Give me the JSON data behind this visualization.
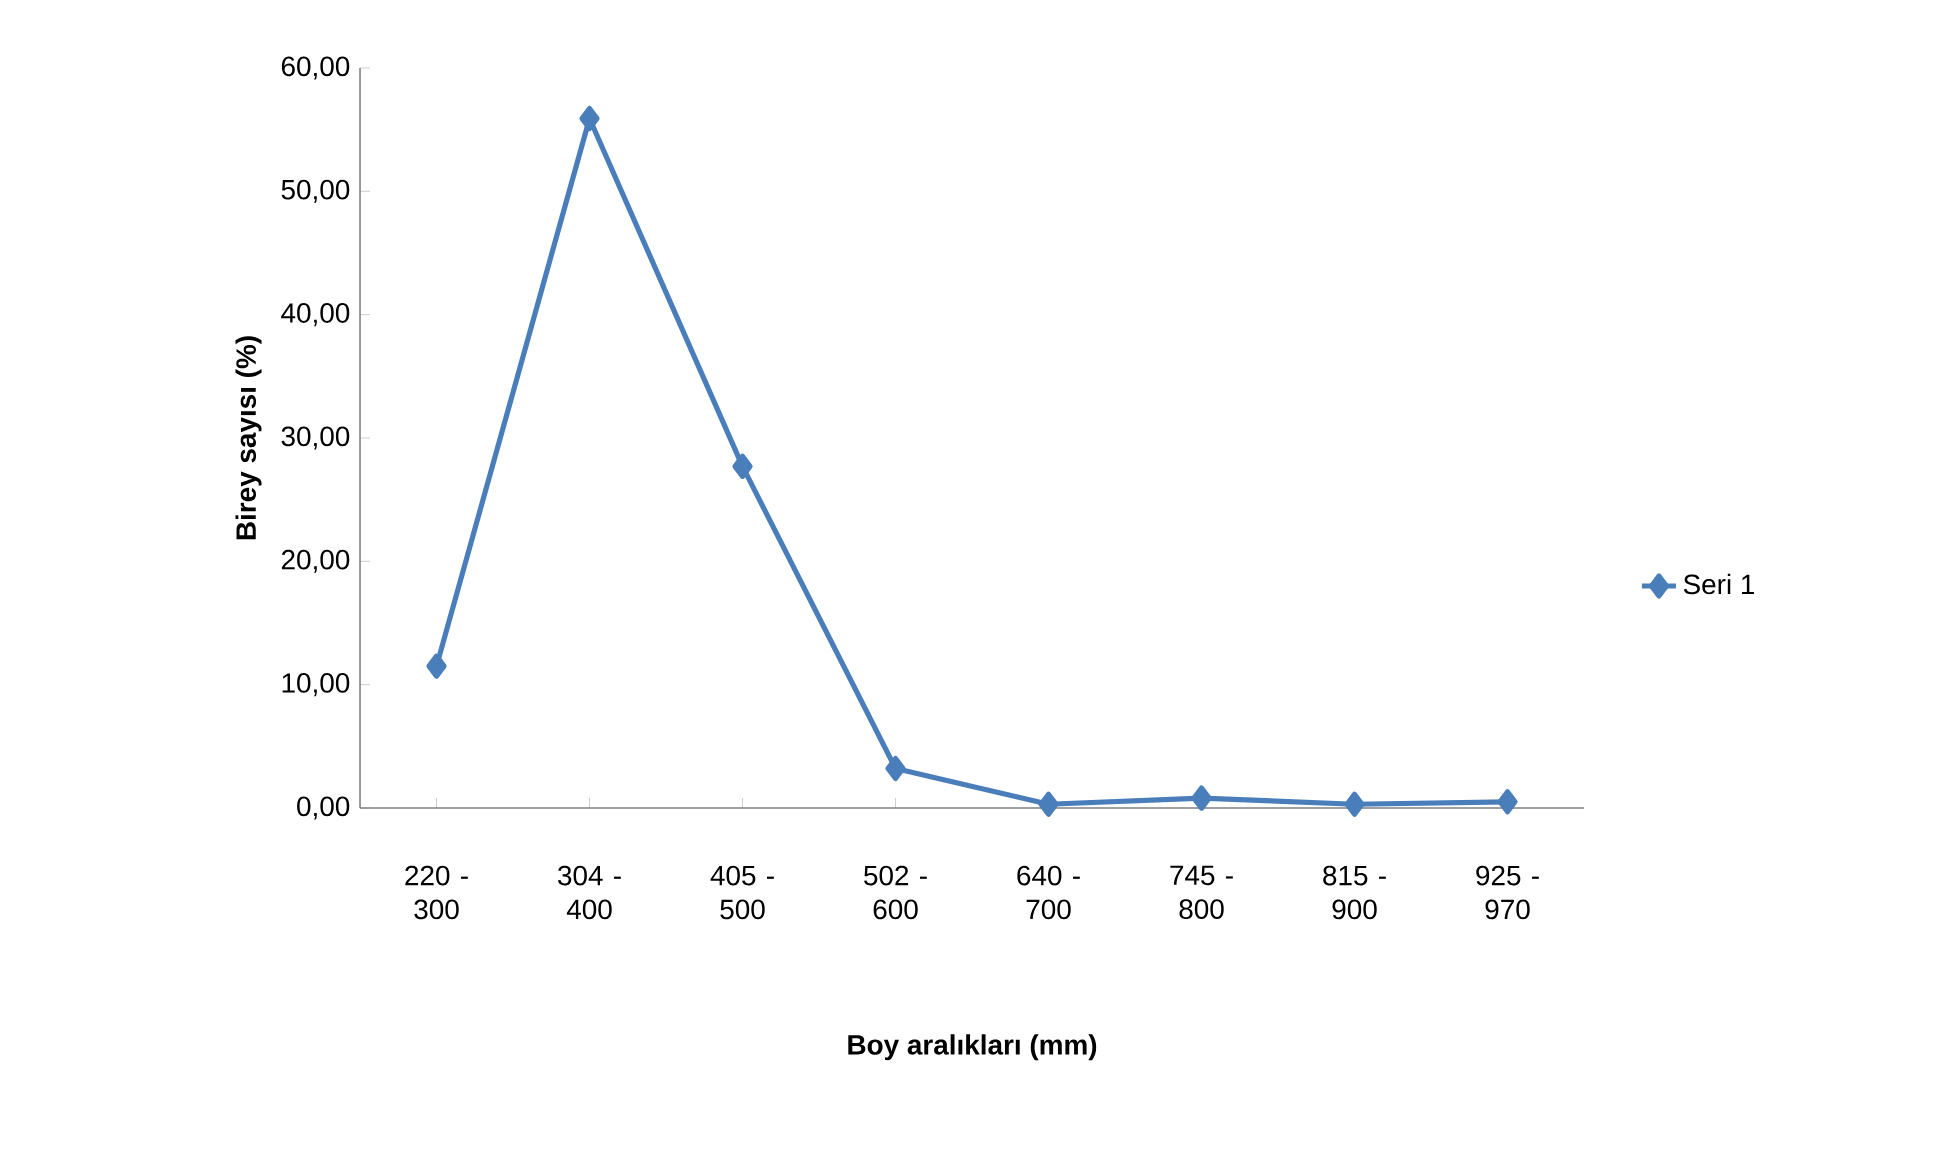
{
  "chart_data": {
    "type": "line",
    "xlabel": "Boy aralıkları (mm)",
    "ylabel": "Birey sayısı (%)",
    "categories": [
      "220 - 300",
      "304 - 400",
      "405 - 500",
      "502 - 600",
      "640 - 700",
      "745 - 800",
      "815 - 900",
      "925 - 970"
    ],
    "series": [
      {
        "name": "Seri 1",
        "color": "#4a7ebb",
        "values": [
          11.5,
          55.9,
          27.7,
          3.2,
          0.3,
          0.8,
          0.3,
          0.5
        ]
      }
    ],
    "ylim": [
      0,
      60
    ],
    "yticks": [
      {
        "value": 0,
        "label": "0,00"
      },
      {
        "value": 10,
        "label": "10,00"
      },
      {
        "value": 20,
        "label": "20,00"
      },
      {
        "value": 30,
        "label": "30,00"
      },
      {
        "value": 40,
        "label": "40,00"
      },
      {
        "value": 50,
        "label": "50,00"
      },
      {
        "value": 60,
        "label": "60,00"
      }
    ],
    "legend": "right",
    "marker": "diamond",
    "line_style": "solid"
  }
}
